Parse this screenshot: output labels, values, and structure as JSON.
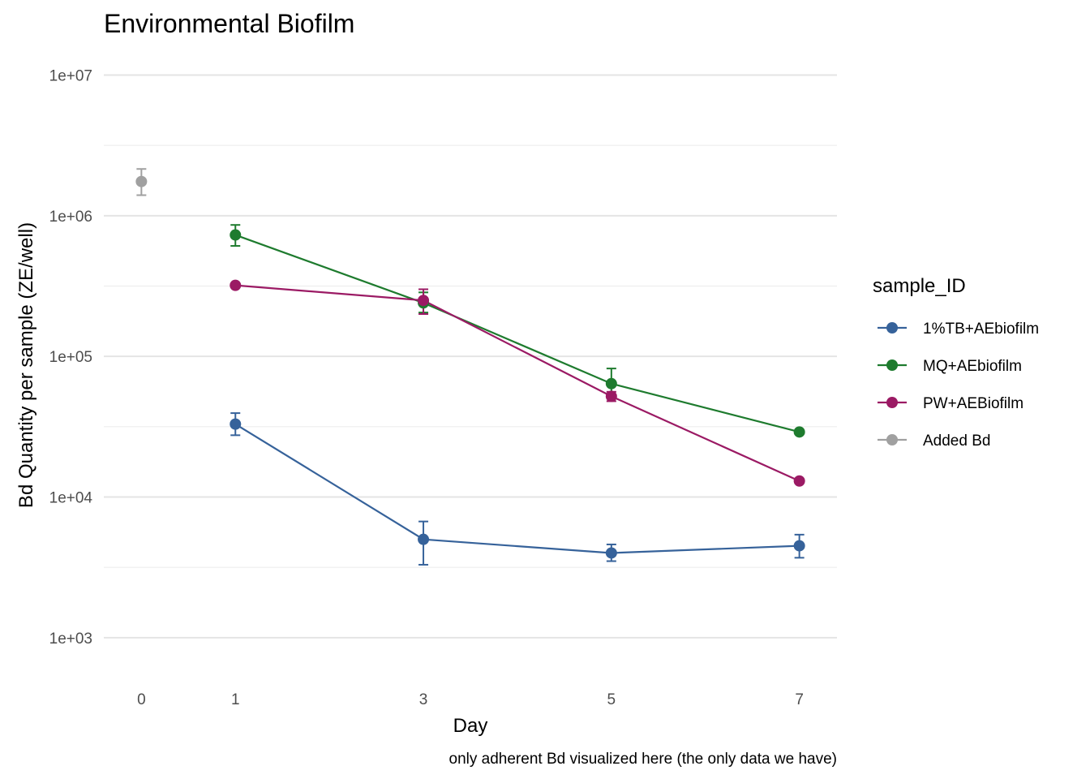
{
  "chart_data": {
    "type": "line",
    "title": "Environmental Biofilm",
    "xlabel": "Day",
    "ylabel": "Bd Quantity per sample (ZE/well)",
    "caption": "only adherent Bd visualized here (the only data we have)",
    "x_ticks": [
      0,
      1,
      3,
      5,
      7
    ],
    "y_scale": "log10",
    "y_ticks": [
      1000,
      10000,
      100000,
      1000000,
      10000000
    ],
    "y_tick_labels": [
      "1e+03",
      "1e+04",
      "1e+05",
      "1e+06",
      "1e+07"
    ],
    "xlim": [
      -0.4,
      7.4
    ],
    "ylim": [
      500,
      15000000
    ],
    "grid": true,
    "legend": {
      "title": "sample_ID",
      "position": "right"
    },
    "series": [
      {
        "name": "1%TB+AEbiofilm",
        "color": "#36629a",
        "x": [
          1,
          3,
          5,
          7
        ],
        "y": [
          33000,
          5000,
          4000,
          4500
        ],
        "ymin": [
          27500,
          3300,
          3500,
          3700
        ],
        "ymax": [
          39500,
          6700,
          4600,
          5400
        ]
      },
      {
        "name": "MQ+AEbiofilm",
        "color": "#1e7b2e",
        "x": [
          1,
          3,
          5,
          7
        ],
        "y": [
          730000,
          240000,
          64000,
          29000
        ],
        "ymin": [
          610000,
          205000,
          50000,
          29000
        ],
        "ymax": [
          860000,
          285000,
          82000,
          29000
        ]
      },
      {
        "name": "PW+AEBiofilm",
        "color": "#9b1a64",
        "x": [
          1,
          3,
          5,
          7
        ],
        "y": [
          320000,
          250000,
          52000,
          13000
        ],
        "ymin": [
          320000,
          200000,
          48000,
          13000
        ],
        "ymax": [
          320000,
          300000,
          56000,
          13000
        ]
      },
      {
        "name": "Added Bd",
        "color": "#a0a0a0",
        "x": [
          0
        ],
        "y": [
          1750000
        ],
        "ymin": [
          1400000
        ],
        "ymax": [
          2150000
        ]
      }
    ]
  }
}
